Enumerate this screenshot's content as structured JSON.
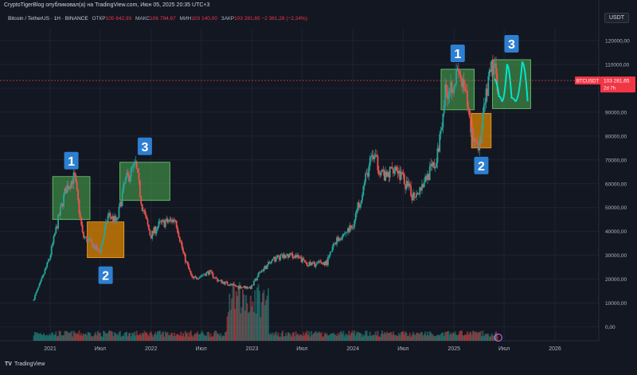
{
  "header": {
    "attribution": "CryptoTigerBlog опубликовал(а) на TradingView.com, Июн 05, 2025 20:35 UTC+3",
    "symbol": "Bitcoin / TetherUS · 1Н · BINANCE",
    "open_label": "ОТКР",
    "open_value": "105 642,93",
    "high_label": "МАКС",
    "high_value": "106 794,67",
    "low_label": "МИН",
    "low_value": "103 140,00",
    "close_label": "ЗАКР",
    "close_value": "103 281,65",
    "change_value": "−2 361,28 (−2,24%)",
    "currency": "USDT"
  },
  "price_tag": {
    "symbol": "BTCUSDT",
    "price": "103 281,65",
    "sub": "2d 7h"
  },
  "footer": {
    "brand_mark": "TV",
    "brand": "TradingView"
  },
  "colors": {
    "background": "#131722",
    "up": "#26a69a",
    "down": "#ef5350",
    "green_box": "#4caf50",
    "orange_box": "#e68a00",
    "badge": "#2d7fd1",
    "cyan_path": "#00e5cc"
  },
  "chart_data": {
    "type": "candlestick",
    "x_ticks": [
      "2021",
      "Июл",
      "2022",
      "Июл",
      "2023",
      "Июл",
      "2024",
      "Июл",
      "2025",
      "Июл",
      "2026"
    ],
    "y_ticks": [
      "0,00",
      "10000,00",
      "20000,00",
      "30000,00",
      "40000,00",
      "50000,00",
      "60000,00",
      "70000,00",
      "80000,00",
      "90000,00",
      "100000,00",
      "110000,00",
      "120000,00"
    ],
    "ylim": [
      -6000,
      128000
    ],
    "last_price": 103281.65,
    "price_path": [
      [
        "2020-11-01",
        10900
      ],
      [
        "2020-12-01",
        19000
      ],
      [
        "2021-01-01",
        29000
      ],
      [
        "2021-02-01",
        45000
      ],
      [
        "2021-03-01",
        58000
      ],
      [
        "2021-04-01",
        63000
      ],
      [
        "2021-05-01",
        38000
      ],
      [
        "2021-06-01",
        35000
      ],
      [
        "2021-07-01",
        31000
      ],
      [
        "2021-08-01",
        47000
      ],
      [
        "2021-09-01",
        44000
      ],
      [
        "2021-10-01",
        61000
      ],
      [
        "2021-11-08",
        68000
      ],
      [
        "2021-12-01",
        51000
      ],
      [
        "2022-01-01",
        38000
      ],
      [
        "2022-02-01",
        43000
      ],
      [
        "2022-04-01",
        45000
      ],
      [
        "2022-05-01",
        30000
      ],
      [
        "2022-06-01",
        20000
      ],
      [
        "2022-08-01",
        23000
      ],
      [
        "2022-09-01",
        19500
      ],
      [
        "2022-11-01",
        17000
      ],
      [
        "2022-12-31",
        16500
      ],
      [
        "2023-02-01",
        23000
      ],
      [
        "2023-04-01",
        29000
      ],
      [
        "2023-06-01",
        30000
      ],
      [
        "2023-08-01",
        26000
      ],
      [
        "2023-10-01",
        27000
      ],
      [
        "2023-11-01",
        36000
      ],
      [
        "2024-01-01",
        42000
      ],
      [
        "2024-03-13",
        72000
      ],
      [
        "2024-05-01",
        62000
      ],
      [
        "2024-06-01",
        68000
      ],
      [
        "2024-08-05",
        55000
      ],
      [
        "2024-09-01",
        58000
      ],
      [
        "2024-10-01",
        64000
      ],
      [
        "2024-11-01",
        69000
      ],
      [
        "2024-12-01",
        98000
      ],
      [
        "2025-01-20",
        106000
      ],
      [
        "2025-02-15",
        96000
      ],
      [
        "2025-03-10",
        80000
      ],
      [
        "2025-04-07",
        76000
      ],
      [
        "2025-04-25",
        94000
      ],
      [
        "2025-05-22",
        110000
      ],
      [
        "2025-06-05",
        103281
      ]
    ],
    "zones": [
      {
        "label": "1",
        "kind": "green",
        "from": "2021-01-10",
        "to": "2021-05-25",
        "low": 45000,
        "high": 63000,
        "badge_at": "top"
      },
      {
        "label": "2",
        "kind": "orange",
        "from": "2021-05-15",
        "to": "2021-09-25",
        "low": 29000,
        "high": 44000,
        "badge_at": "bottom"
      },
      {
        "label": "3",
        "kind": "green",
        "from": "2021-09-10",
        "to": "2022-03-10",
        "low": 53000,
        "high": 69000,
        "badge_at": "top"
      },
      {
        "label": "1",
        "kind": "green",
        "from": "2024-11-15",
        "to": "2025-03-15",
        "low": 91000,
        "high": 108000,
        "badge_at": "top"
      },
      {
        "label": "2",
        "kind": "orange",
        "from": "2025-03-05",
        "to": "2025-05-15",
        "low": 75000,
        "high": 89500,
        "badge_at": "bottom"
      },
      {
        "label": "3",
        "kind": "green",
        "from": "2025-05-20",
        "to": "2025-10-05",
        "low": 91500,
        "high": 112000,
        "badge_at": "top"
      }
    ]
  }
}
